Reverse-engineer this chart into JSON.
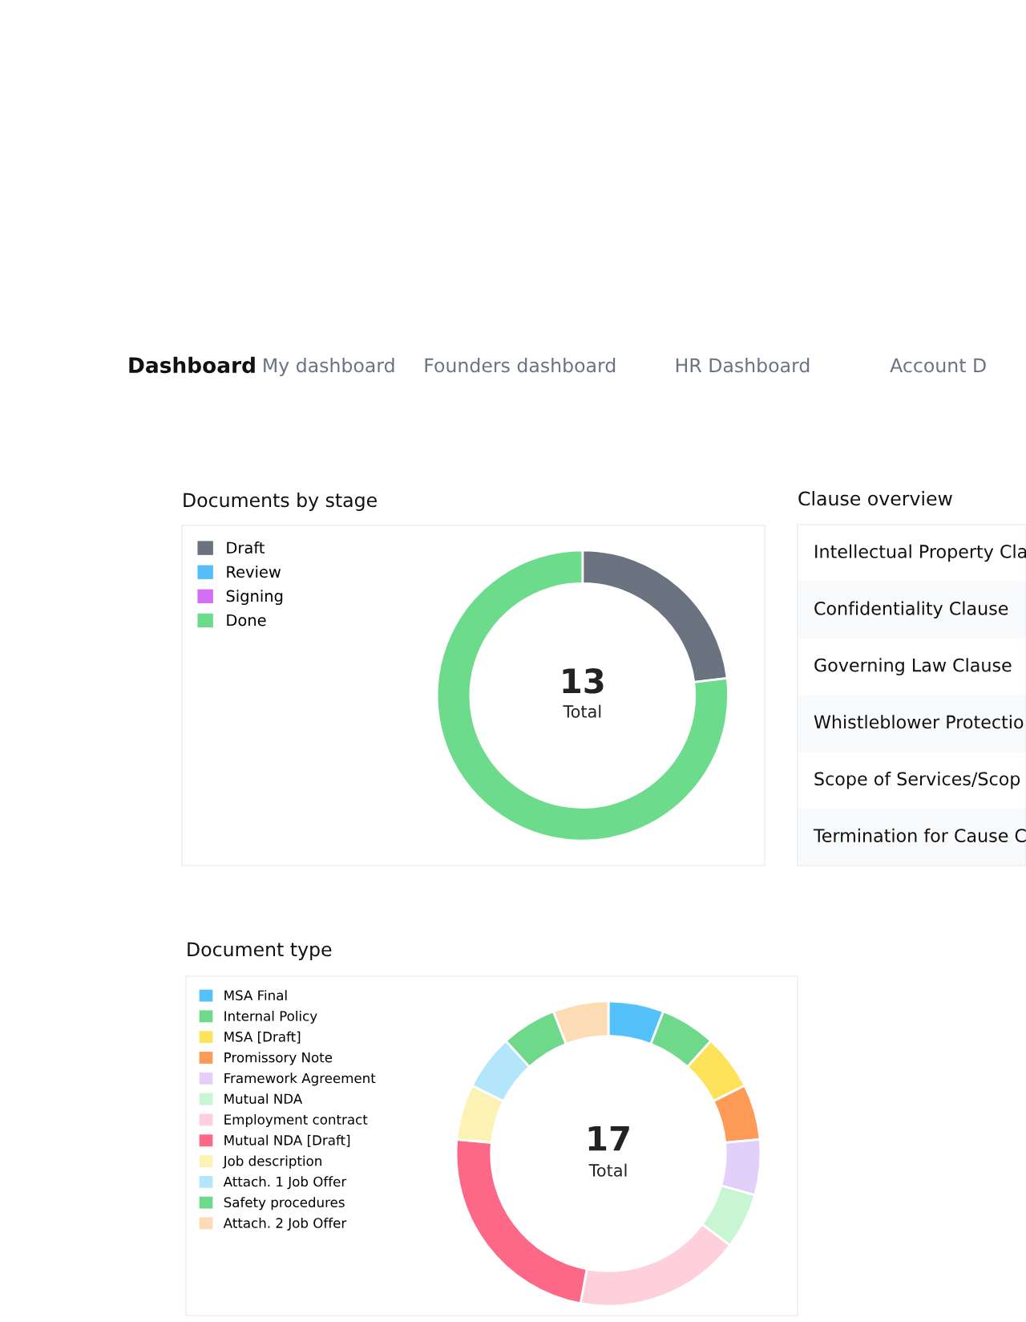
{
  "chart_data": [
    {
      "type": "other",
      "title": "Dashboard",
      "annotations": [
        "My dashboard",
        "Founders dashboard",
        "HR Dashboard",
        "Account D"
      ]
    },
    {
      "type": "donut",
      "title": "Documents by stage",
      "categories": [
        "Draft",
        "Review",
        "Signing",
        "Done"
      ],
      "values": [
        23.1,
        0,
        0,
        76.9
      ],
      "colors": [
        "#6b7280",
        "#55bef8",
        "#d16ef5",
        "#6ddb8c"
      ],
      "legend": "top left",
      "annotations": [
        "13",
        "Total"
      ]
    },
    {
      "type": "other",
      "title": "Clause overview",
      "annotations": [
        "Intellectual Property Cla",
        "Confidentiality Clause",
        "Governing Law Clause",
        "Whistleblower Protectio",
        "Scope of Services/Scop",
        "Termination for Cause C"
      ]
    },
    {
      "type": "donut",
      "title": "Document type",
      "categories": [
        "MSA Final",
        "Internal Policy",
        "MSA [Draft]",
        "Promissory Note",
        "Framework Agreement",
        "Mutual NDA",
        "Employment contract",
        "Mutual NDA [Draft]",
        "Job description",
        "Attach. 1 Job Offer",
        "Safety procedures",
        "Attach. 2 Job Offer"
      ],
      "values": [
        5.88,
        5.88,
        5.88,
        5.88,
        5.88,
        5.88,
        17.65,
        23.54,
        5.88,
        5.88,
        5.88,
        5.88
      ],
      "colors": [
        "#55c1fa",
        "#6ed98b",
        "#fde35a",
        "#fd9b57",
        "#e3d0fa",
        "#c8f5d2",
        "#fdd0dc",
        "#fd6886",
        "#fcf2b3",
        "#b3e6fa",
        "#6ed98b",
        "#fddcb5"
      ],
      "legend": "top left",
      "annotations": [
        "17",
        "Total"
      ]
    }
  ]
}
